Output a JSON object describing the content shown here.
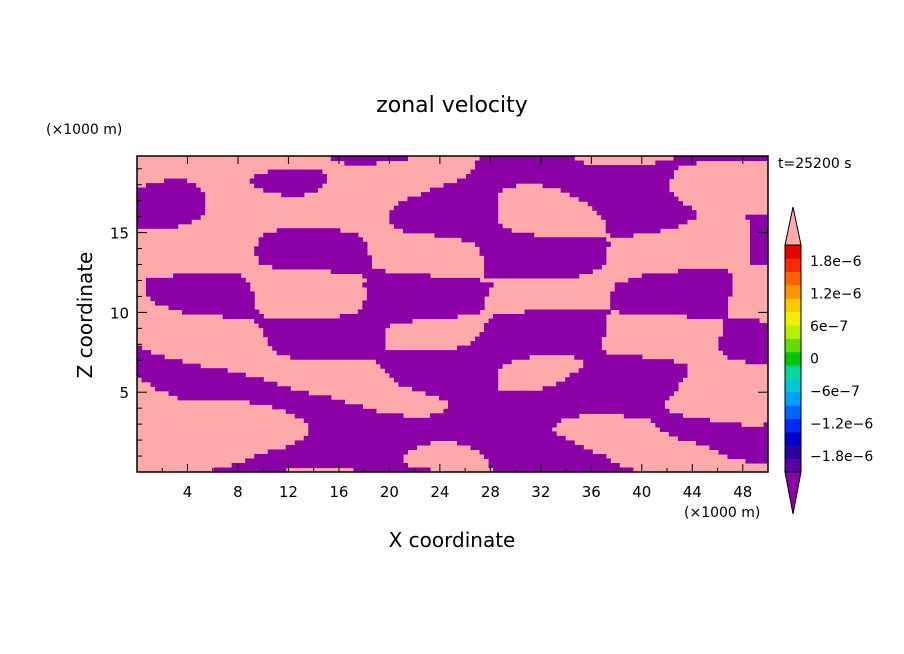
{
  "chart_data": {
    "type": "heatmap",
    "title": "zonal velocity",
    "xlabel": "X coordinate",
    "ylabel": "Z coordinate",
    "x_unit": "(×1000 m)",
    "y_unit": "(×1000 m)",
    "time_label": "t=25200 s",
    "xlim": [
      0,
      50
    ],
    "ylim": [
      0,
      19.8
    ],
    "x_ticks": [
      4,
      8,
      12,
      16,
      20,
      24,
      28,
      32,
      36,
      40,
      44,
      48
    ],
    "y_ticks": [
      5,
      10,
      15
    ],
    "dominant_fields": [
      {
        "name": "positive",
        "value": 2e-06,
        "color": "#ffaaaa"
      },
      {
        "name": "negative",
        "value": -2e-06,
        "color": "#8c00a8"
      }
    ],
    "colorbar": {
      "range": [
        -2.1e-06,
        2.1e-06
      ],
      "labels": [
        {
          "text": "1.8e-6",
          "value": 1.8e-06
        },
        {
          "text": "1.2e-6",
          "value": 1.2e-06
        },
        {
          "text": "6e-7",
          "value": 6e-07
        },
        {
          "text": "0",
          "value": 0
        },
        {
          "text": "-6e-7",
          "value": -6e-07
        },
        {
          "text": "-1.2e-6",
          "value": -1.2e-06
        },
        {
          "text": "-1.8e-6",
          "value": -1.8e-06
        }
      ],
      "colors": [
        "#5a00aa",
        "#2a00a0",
        "#0000c8",
        "#0028ff",
        "#0064ff",
        "#00a0ff",
        "#00c8d8",
        "#00d8a0",
        "#00c800",
        "#64dc00",
        "#b4f000",
        "#f0f000",
        "#ffc800",
        "#ff9600",
        "#ff6400",
        "#ff2800",
        "#e60000"
      ],
      "over_color": "#ffaaaa",
      "under_color": "#8c00a8"
    }
  }
}
